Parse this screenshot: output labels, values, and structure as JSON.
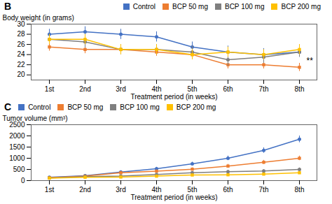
{
  "chart_data": [
    {
      "type": "line",
      "title": "B",
      "categories": [
        "1st",
        "2nd",
        "3rd",
        "4th",
        "5th",
        "6th",
        "7th",
        "8th"
      ],
      "series": [
        {
          "name": "Control",
          "color": "#4472C4",
          "marker": "circle",
          "values": [
            28.0,
            28.5,
            28.0,
            27.5,
            25.5,
            24.5,
            24.0,
            24.5
          ],
          "errors": [
            1.0,
            1.0,
            1.0,
            1.0,
            1.0,
            1.2,
            1.2,
            1.0
          ]
        },
        {
          "name": "BCP 50 mg",
          "color": "#ED7D31",
          "marker": "square",
          "values": [
            25.5,
            25.0,
            25.0,
            24.5,
            24.0,
            22.0,
            22.0,
            21.5
          ],
          "errors": [
            0.8,
            0.8,
            0.8,
            0.8,
            0.8,
            0.8,
            0.8,
            0.8
          ]
        },
        {
          "name": "BCP 100 mg",
          "color": "#7F7F7F",
          "marker": "circle",
          "values": [
            27.0,
            26.5,
            25.0,
            25.0,
            24.5,
            23.0,
            23.5,
            24.5
          ],
          "errors": [
            1.0,
            1.2,
            1.0,
            1.0,
            1.2,
            1.2,
            1.2,
            1.0
          ]
        },
        {
          "name": "BCP 200 mg",
          "color": "#FFC000",
          "marker": "square",
          "values": [
            27.0,
            27.0,
            25.0,
            25.0,
            24.0,
            24.5,
            24.0,
            25.0
          ],
          "errors": [
            1.0,
            1.0,
            1.0,
            1.0,
            1.0,
            1.0,
            1.0,
            1.0
          ]
        }
      ],
      "xlabel": "Treatment period (in weeks)",
      "ylabel": "Body weight (in grams)",
      "ylim": [
        19,
        30
      ],
      "yticks": [
        20,
        22,
        24,
        26,
        28,
        30
      ],
      "legend": "upper right",
      "annotations": [
        {
          "text": "**",
          "x": "8th",
          "y": 22.8
        }
      ]
    },
    {
      "type": "line",
      "title": "C",
      "categories": [
        "1st",
        "2nd",
        "3rd",
        "4th",
        "5th",
        "6th",
        "7th",
        "8th"
      ],
      "series": [
        {
          "name": "Control",
          "color": "#4472C4",
          "marker": "circle",
          "values": [
            150,
            220,
            380,
            530,
            750,
            1000,
            1350,
            1850
          ],
          "errors": [
            30,
            40,
            60,
            70,
            80,
            100,
            120,
            150
          ]
        },
        {
          "name": "BCP 50 mg",
          "color": "#ED7D31",
          "marker": "square",
          "values": [
            130,
            200,
            350,
            420,
            510,
            650,
            820,
            1000
          ],
          "errors": [
            25,
            35,
            60,
            55,
            65,
            80,
            90,
            100
          ]
        },
        {
          "name": "BCP 100 mg",
          "color": "#7F7F7F",
          "marker": "circle",
          "values": [
            120,
            180,
            200,
            270,
            350,
            400,
            430,
            500
          ],
          "errors": [
            20,
            30,
            40,
            40,
            50,
            60,
            60,
            70
          ]
        },
        {
          "name": "BCP 200 mg",
          "color": "#FFC000",
          "marker": "square",
          "values": [
            110,
            150,
            160,
            200,
            250,
            260,
            290,
            350
          ],
          "errors": [
            15,
            25,
            30,
            30,
            40,
            40,
            50,
            60
          ]
        }
      ],
      "xlabel": "Treatment period (in weeks)",
      "ylabel": "Tumor volume (mm³)",
      "ylim": [
        0,
        2500
      ],
      "yticks": [
        0,
        500,
        1000,
        1500,
        2000,
        2500
      ],
      "legend": "upper left"
    }
  ]
}
